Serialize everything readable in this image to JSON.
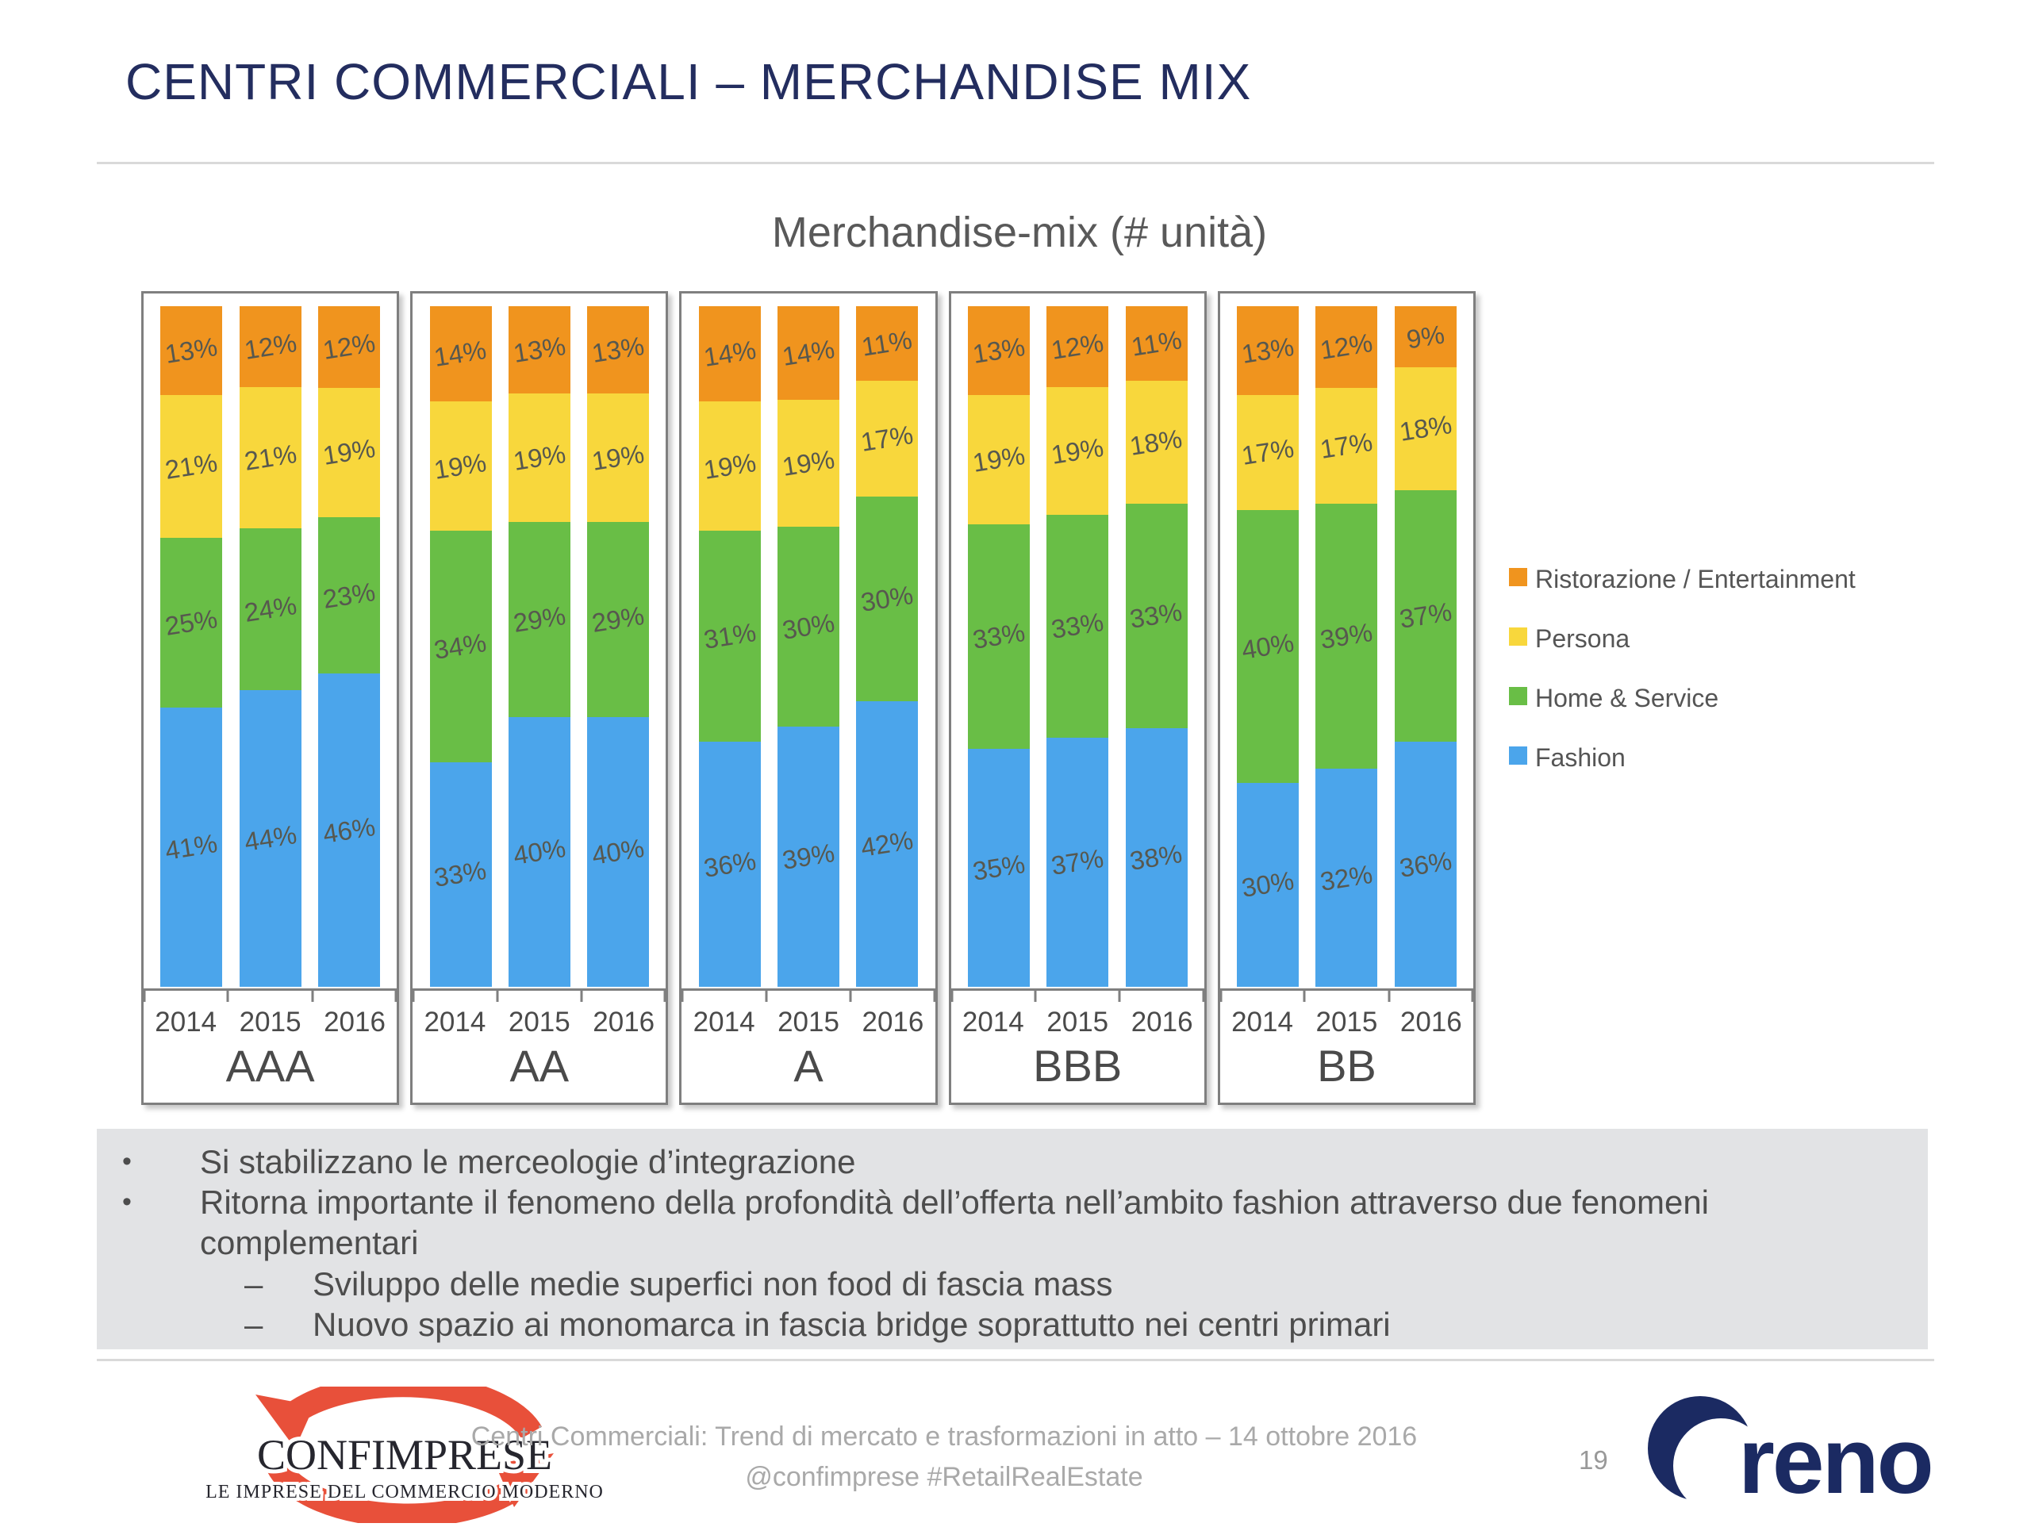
{
  "header": {
    "title": "CENTRI COMMERCIALI – MERCHANDISE MIX"
  },
  "chart_data": {
    "type": "bar",
    "variant": "100-percent-stacked-columns",
    "title": "Merchandise-mix (# unità)",
    "unit": "%",
    "grid": false,
    "legend_position": "right",
    "categories": [
      "AAA",
      "AA",
      "A",
      "BBB",
      "BB"
    ],
    "years_per_group": [
      "2014",
      "2015",
      "2016"
    ],
    "series_top_to_bottom": [
      {
        "name": "Ristorazione / Entertainment",
        "color": "#F0941E",
        "values": [
          [
            13,
            12,
            12
          ],
          [
            14,
            13,
            13
          ],
          [
            14,
            14,
            11
          ],
          [
            13,
            12,
            11
          ],
          [
            13,
            12,
            9
          ]
        ]
      },
      {
        "name": "Persona",
        "color": "#F8D73C",
        "values": [
          [
            21,
            21,
            19
          ],
          [
            19,
            19,
            19
          ],
          [
            19,
            19,
            17
          ],
          [
            19,
            19,
            18
          ],
          [
            17,
            17,
            18
          ]
        ]
      },
      {
        "name": "Home & Service",
        "color": "#69BE46",
        "values": [
          [
            25,
            24,
            23
          ],
          [
            34,
            29,
            29
          ],
          [
            31,
            30,
            30
          ],
          [
            33,
            33,
            33
          ],
          [
            40,
            39,
            37
          ]
        ]
      },
      {
        "name": "Fashion",
        "color": "#4BA5EB",
        "values": [
          [
            41,
            44,
            46
          ],
          [
            33,
            40,
            40
          ],
          [
            36,
            39,
            42
          ],
          [
            35,
            37,
            38
          ],
          [
            30,
            32,
            36
          ]
        ]
      }
    ]
  },
  "notes": {
    "bullets": [
      {
        "level": 1,
        "marker": "•",
        "text": "Si stabilizzano le merceologie d’integrazione"
      },
      {
        "level": 1,
        "marker": "•",
        "text": "Ritorna importante il fenomeno della profondità dell’offerta nell’ambito fashion attraverso due fenomeni complementari"
      },
      {
        "level": 2,
        "marker": "–",
        "text": "Sviluppo delle medie superfici non food di fascia mass"
      },
      {
        "level": 2,
        "marker": "–",
        "text": "Nuovo spazio ai monomarca in fascia bridge soprattutto nei centri primari"
      }
    ]
  },
  "footer": {
    "caption_line1": "Centri Commerciali: Trend di mercato e trasformazioni in atto – 14 ottobre 2016",
    "caption_line2": "@confimprese #RetailRealEstate",
    "page_number": "19"
  },
  "logos": {
    "confimprese": {
      "name": "CONFIMPRESE",
      "tagline": "LE IMPRESE DEL COMMERCIO MODERNO",
      "red": "#E8503A"
    },
    "reno": {
      "name": "reno",
      "navy": "#1B2A62"
    }
  },
  "colors": {
    "title_navy": "#232D5F",
    "chart_label_gray": "#57584F",
    "panel_gray": "#E2E3E5"
  }
}
